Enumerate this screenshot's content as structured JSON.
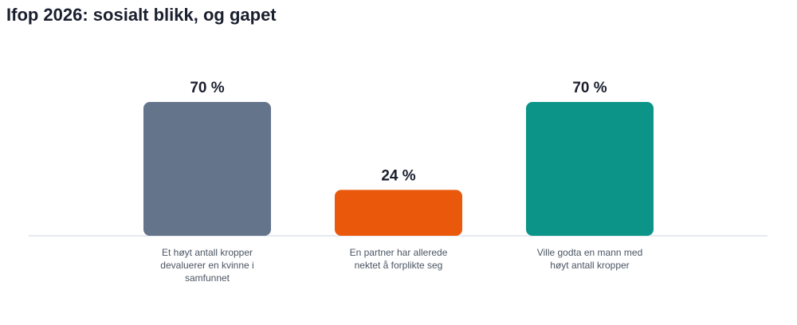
{
  "chart_data": {
    "type": "bar",
    "title": "Ifop 2026: sosialt blikk, og gapet",
    "categories": [
      "Et høyt antall kropper devaluerer en kvinne i samfunnet",
      "En partner har allerede nektet å forplikte seg",
      "Ville godta en mann med høyt antall kropper"
    ],
    "values": [
      70,
      24,
      70
    ],
    "value_labels": [
      "70 %",
      "24 %",
      "70 %"
    ],
    "colors": [
      "#64748b",
      "#ea580c",
      "#0d9488"
    ],
    "ylim": [
      0,
      70
    ]
  }
}
